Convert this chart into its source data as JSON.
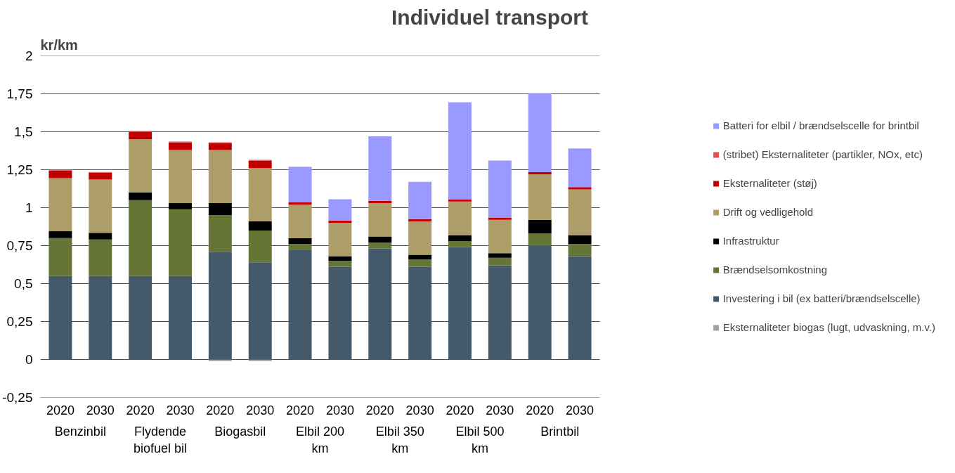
{
  "chart_data": {
    "type": "bar",
    "stacked": true,
    "title": "Individuel transport",
    "ylabel": "kr/km",
    "categories": [
      "2020",
      "2030",
      "2020",
      "2030",
      "2020",
      "2030",
      "2020",
      "2030",
      "2020",
      "2030",
      "2020",
      "2030",
      "2020",
      "2030"
    ],
    "annotations": [
      "Benzinbil",
      "Flydende biofuel bil",
      "Biogasbil",
      "Elbil 200 km",
      "Elbil 350 km",
      "Elbil 500 km",
      "Brintbil"
    ],
    "series": [
      {
        "name": "Eksternaliteter biogas (lugt, udvaskning, m.v.)",
        "color": "#a0a0a0",
        "values": [
          null,
          null,
          null,
          null,
          -0.01,
          -0.01,
          null,
          null,
          null,
          null,
          null,
          null,
          null,
          null
        ]
      },
      {
        "name": "Investering i bil (ex batteri/brændselscelle)",
        "color": "#445a6b",
        "values": [
          0.55,
          0.55,
          0.55,
          0.55,
          0.71,
          0.64,
          0.72,
          0.61,
          0.73,
          0.61,
          0.74,
          0.62,
          0.75,
          0.68
        ]
      },
      {
        "name": "Brændselsomkostning",
        "color": "#657536",
        "values": [
          0.25,
          0.24,
          0.5,
          0.44,
          0.24,
          0.21,
          0.04,
          0.04,
          0.04,
          0.05,
          0.04,
          0.05,
          0.08,
          0.08
        ]
      },
      {
        "name": "Infrastruktur",
        "color": "#000000",
        "values": [
          0.045,
          0.045,
          0.05,
          0.04,
          0.08,
          0.06,
          0.04,
          0.03,
          0.04,
          0.03,
          0.04,
          0.03,
          0.09,
          0.06
        ]
      },
      {
        "name": "Drift og vedligehold",
        "color": "#ad9d68",
        "values": [
          0.35,
          0.35,
          0.35,
          0.35,
          0.35,
          0.35,
          0.22,
          0.22,
          0.22,
          0.22,
          0.22,
          0.22,
          0.3,
          0.3
        ]
      },
      {
        "name": "Eksternaliteter (støj)",
        "color": "#c00000",
        "values": [
          0.05,
          0.045,
          0.05,
          0.05,
          0.045,
          0.05,
          0.015,
          0.015,
          0.015,
          0.015,
          0.015,
          0.015,
          0.015,
          0.015
        ]
      },
      {
        "name": "(stribet) Eksternaliteter (partikler, NOx, etc)",
        "color": "#e05050",
        "values": [
          0.005,
          0.005,
          0.005,
          0.005,
          0.005,
          0.005,
          null,
          null,
          null,
          null,
          null,
          null,
          null,
          null
        ]
      },
      {
        "name": "Batteri for elbil / brændselscelle for brintbil",
        "color": "#9999ff",
        "values": [
          null,
          null,
          null,
          null,
          null,
          null,
          0.235,
          0.14,
          0.425,
          0.245,
          0.64,
          0.375,
          0.52,
          0.255
        ]
      }
    ],
    "ylim": [
      -0.25,
      2
    ],
    "yticks": [
      {
        "value": -0.25,
        "label": "-0,25"
      },
      0,
      {
        "value": 0.25,
        "label": "0,25"
      },
      {
        "value": 0.5,
        "label": "0,5"
      },
      {
        "value": 0.75,
        "label": "0,75"
      },
      1,
      {
        "value": 1.25,
        "label": "1,25"
      },
      {
        "value": 1.5,
        "label": "1,5"
      },
      {
        "value": 1.75,
        "label": "1,75"
      },
      2
    ],
    "grid": "y",
    "legend": "right"
  }
}
